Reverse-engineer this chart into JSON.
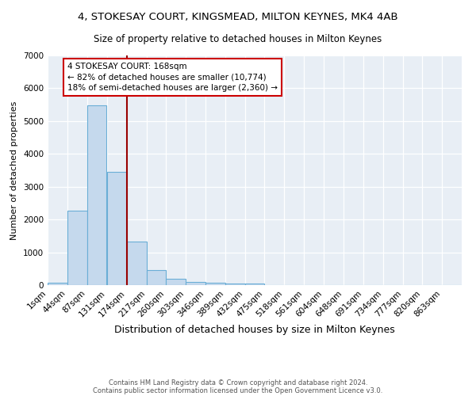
{
  "title1": "4, STOKESAY COURT, KINGSMEAD, MILTON KEYNES, MK4 4AB",
  "title2": "Size of property relative to detached houses in Milton Keynes",
  "xlabel": "Distribution of detached houses by size in Milton Keynes",
  "ylabel": "Number of detached properties",
  "bar_labels": [
    "1sqm",
    "44sqm",
    "87sqm",
    "131sqm",
    "174sqm",
    "217sqm",
    "260sqm",
    "303sqm",
    "346sqm",
    "389sqm",
    "432sqm",
    "475sqm",
    "518sqm",
    "561sqm",
    "604sqm",
    "648sqm",
    "691sqm",
    "734sqm",
    "777sqm",
    "820sqm",
    "863sqm"
  ],
  "bar_values": [
    75,
    2280,
    5480,
    3440,
    1330,
    460,
    190,
    95,
    65,
    60,
    55,
    0,
    0,
    0,
    0,
    0,
    0,
    0,
    0,
    0,
    0
  ],
  "bar_color": "#c5d9ed",
  "bar_edge_color": "#6aaed6",
  "vline_x": 174,
  "vline_color": "#990000",
  "bin_starts": [
    1,
    44,
    87,
    131,
    174,
    217,
    260,
    303,
    346,
    389,
    432,
    475,
    518,
    561,
    604,
    648,
    691,
    734,
    777,
    820,
    863
  ],
  "bin_width": 43,
  "annotation_line1": "4 STOKESAY COURT: 168sqm",
  "annotation_line2": "← 82% of detached houses are smaller (10,774)",
  "annotation_line3": "18% of semi-detached houses are larger (2,360) →",
  "annotation_box_color": "#ffffff",
  "annotation_box_edge": "#cc0000",
  "ylim": [
    0,
    7000
  ],
  "background_color": "#e8eef5",
  "footer1": "Contains HM Land Registry data © Crown copyright and database right 2024.",
  "footer2": "Contains public sector information licensed under the Open Government Licence v3.0.",
  "title1_fontsize": 9.5,
  "title2_fontsize": 8.5,
  "xlabel_fontsize": 9,
  "ylabel_fontsize": 8,
  "tick_fontsize": 7.5,
  "footer_fontsize": 6,
  "annotation_fontsize": 7.5
}
